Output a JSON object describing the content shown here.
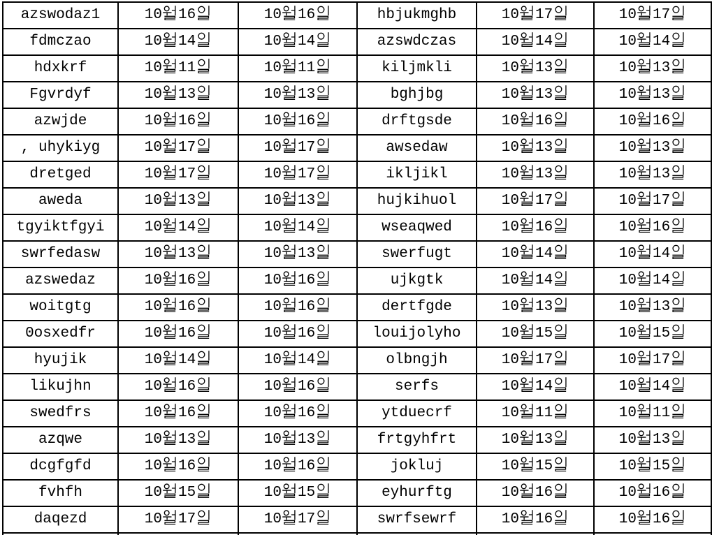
{
  "colors": {
    "background": "#ffffff",
    "grid_border": "#000000",
    "text": "#000000"
  },
  "date_glyphs": {
    "month_char": "월",
    "day_char": "일"
  },
  "table": {
    "column_kinds": [
      "name",
      "date",
      "date",
      "name",
      "date",
      "date"
    ],
    "rows": [
      [
        "azswodaz1",
        "10월16일",
        "10월16일",
        "hbjukmghb",
        "10월17일",
        "10월17일"
      ],
      [
        "fdmczao",
        "10월14일",
        "10월14일",
        "azswdczas",
        "10월14일",
        "10월14일"
      ],
      [
        "hdxkrf",
        "10월11일",
        "10월11일",
        "kiljmkli",
        "10월13일",
        "10월13일"
      ],
      [
        "Fgvrdyf",
        "10월13일",
        "10월13일",
        "bghjbg",
        "10월13일",
        "10월13일"
      ],
      [
        "azwjde",
        "10월16일",
        "10월16일",
        "drftgsde",
        "10월16일",
        "10월16일"
      ],
      [
        ", uhykiyg",
        "10월17일",
        "10월17일",
        "awsedaw",
        "10월13일",
        "10월13일"
      ],
      [
        "dretged",
        "10월17일",
        "10월17일",
        "ikljikl",
        "10월13일",
        "10월13일"
      ],
      [
        "aweda",
        "10월13일",
        "10월13일",
        "hujkihuol",
        "10월17일",
        "10월17일"
      ],
      [
        "tgyiktfgyi",
        "10월14일",
        "10월14일",
        "wseaqwed",
        "10월16일",
        "10월16일"
      ],
      [
        "swrfedasw",
        "10월13일",
        "10월13일",
        "swerfugt",
        "10월14일",
        "10월14일"
      ],
      [
        "azswedaz",
        "10월16일",
        "10월16일",
        "ujkgtk",
        "10월14일",
        "10월14일"
      ],
      [
        "woitgtg",
        "10월16일",
        "10월16일",
        "dertfgde",
        "10월13일",
        "10월13일"
      ],
      [
        "0osxedfr",
        "10월16일",
        "10월16일",
        "louijolyho",
        "10월15일",
        "10월15일"
      ],
      [
        "hyujik",
        "10월14일",
        "10월14일",
        "olbngjh",
        "10월17일",
        "10월17일"
      ],
      [
        "likujhn",
        "10월16일",
        "10월16일",
        "serfs",
        "10월14일",
        "10월14일"
      ],
      [
        "swedfrs",
        "10월16일",
        "10월16일",
        "ytduecrf",
        "10월11일",
        "10월11일"
      ],
      [
        "azqwe",
        "10월13일",
        "10월13일",
        "frtgyhfrt",
        "10월13일",
        "10월13일"
      ],
      [
        "dcgfgfd",
        "10월16일",
        "10월16일",
        "jokluj",
        "10월15일",
        "10월15일"
      ],
      [
        "fvhfh",
        "10월15일",
        "10월15일",
        "eyhurftg",
        "10월16일",
        "10월16일"
      ],
      [
        "daqezd",
        "10월17일",
        "10월17일",
        "swrfsewrf",
        "10월16일",
        "10월16일"
      ]
    ],
    "partial_bottom_row_visible": true
  }
}
